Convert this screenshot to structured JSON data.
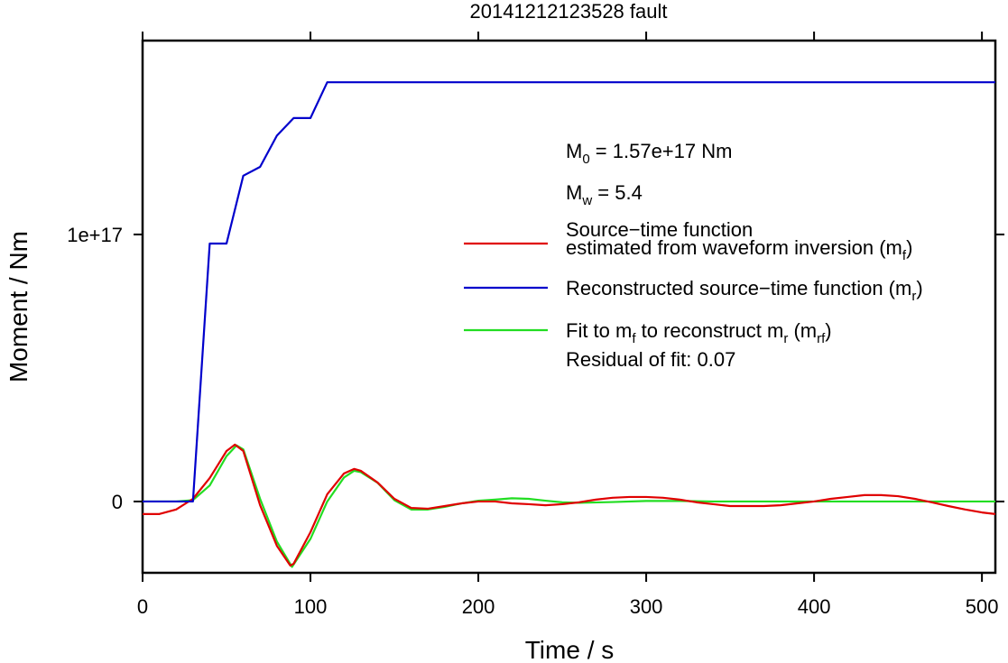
{
  "chart_data": {
    "type": "line",
    "title": "20141212123528 fault",
    "x_label": "Time / s",
    "y_label": "Moment / Nm",
    "xlim": [
      0,
      508
    ],
    "ylim": [
      -2.67e+16,
      1.726e+17
    ],
    "xticks": [
      0,
      100,
      200,
      300,
      400,
      500
    ],
    "yticks": [
      0,
      {
        "value": 1e+17,
        "label": "1e+17"
      }
    ],
    "annotations": [
      [
        "M",
        {
          "sub": "0"
        },
        " = 1.57e+17 Nm"
      ],
      [
        "M",
        {
          "sub": "w"
        },
        " = 5.4"
      ],
      [
        "Residual of fit: 0.07"
      ]
    ],
    "series": [
      {
        "name": [
          [
            "Source−time function"
          ],
          [
            "estimated from waveform inversion (m",
            {
              "sub": "f"
            },
            ")"
          ]
        ],
        "color": "#e00000",
        "x": [
          0,
          10,
          20,
          30,
          40,
          50,
          55,
          60,
          70,
          80,
          88,
          90,
          100,
          110,
          120,
          126,
          130,
          140,
          150,
          160,
          170,
          180,
          190,
          200,
          210,
          220,
          230,
          240,
          250,
          260,
          270,
          280,
          290,
          300,
          310,
          320,
          330,
          340,
          350,
          360,
          370,
          380,
          390,
          400,
          410,
          420,
          430,
          440,
          450,
          460,
          470,
          480,
          490,
          500,
          508
        ],
        "values": [
          -4700000000000000.0,
          -4700000000000000.0,
          -3000000000000000.0,
          1000000000000000.0,
          8800000000000000.0,
          1.89e+16,
          2.13e+16,
          1.89e+16,
          -1400000000000000.0,
          -1.66e+16,
          -2.4e+16,
          -2.33e+16,
          -1.15e+16,
          2700000000000000.0,
          1.05e+16,
          1.22e+16,
          1.15e+16,
          7100000000000000.0,
          1000000000000000.0,
          -2400000000000000.0,
          -2700000000000000.0,
          -1700000000000000.0,
          -700000000000000.0,
          0,
          0,
          -700000000000000.0,
          -1000000000000000.0,
          -1400000000000000.0,
          -1000000000000000.0,
          -300000000000000.0,
          700000000000000.0,
          1400000000000000.0,
          1700000000000000.0,
          1700000000000000.0,
          1400000000000000.0,
          700000000000000.0,
          -300000000000000.0,
          -1000000000000000.0,
          -1700000000000000.0,
          -1700000000000000.0,
          -1700000000000000.0,
          -1400000000000000.0,
          -700000000000000.0,
          0,
          1000000000000000.0,
          1700000000000000.0,
          2400000000000000.0,
          2400000000000000.0,
          2000000000000000.0,
          1000000000000000.0,
          -300000000000000.0,
          -1700000000000000.0,
          -3000000000000000.0,
          -4100000000000000.0,
          -4700000000000000.0
        ]
      },
      {
        "name": [
          [
            "Reconstructed source−time function (m",
            {
              "sub": "r"
            },
            ")"
          ]
        ],
        "color": "#0000cc",
        "x": [
          0,
          30,
          40,
          50,
          60,
          70,
          80,
          90,
          100,
          110,
          508
        ],
        "values": [
          0,
          0,
          9.66e+16,
          9.66e+16,
          1.22e+17,
          1.253e+17,
          1.37e+17,
          1.436e+17,
          1.436e+17,
          1.57e+17,
          1.57e+17
        ]
      },
      {
        "name": [
          [
            "Fit to m",
            {
              "sub": "f"
            },
            " to reconstruct m",
            {
              "sub": "r"
            },
            " (m",
            {
              "sub": "rf"
            },
            ")"
          ]
        ],
        "color": "#22dd22",
        "x": [
          0,
          20,
          30,
          40,
          50,
          56,
          60,
          70,
          80,
          89,
          100,
          110,
          120,
          126,
          130,
          140,
          150,
          160,
          170,
          180,
          190,
          200,
          210,
          220,
          230,
          240,
          250,
          260,
          280,
          300,
          320,
          340,
          508
        ],
        "values": [
          0,
          0,
          500000000000000.0,
          6000000000000000.0,
          1.7e+16,
          2.1e+16,
          1.95e+16,
          1000000000000000.0,
          -1.5e+16,
          -2.45e+16,
          -1.4e+16,
          0,
          9000000000000000.0,
          1.15e+16,
          1.1e+16,
          7000000000000000.0,
          500000000000000.0,
          -3000000000000000.0,
          -3000000000000000.0,
          -2000000000000000.0,
          -700000000000000.0,
          300000000000000.0,
          700000000000000.0,
          1200000000000000.0,
          1000000000000000.0,
          300000000000000.0,
          -300000000000000.0,
          -500000000000000.0,
          -200000000000000.0,
          200000000000000.0,
          200000000000000.0,
          0,
          0
        ]
      }
    ]
  }
}
